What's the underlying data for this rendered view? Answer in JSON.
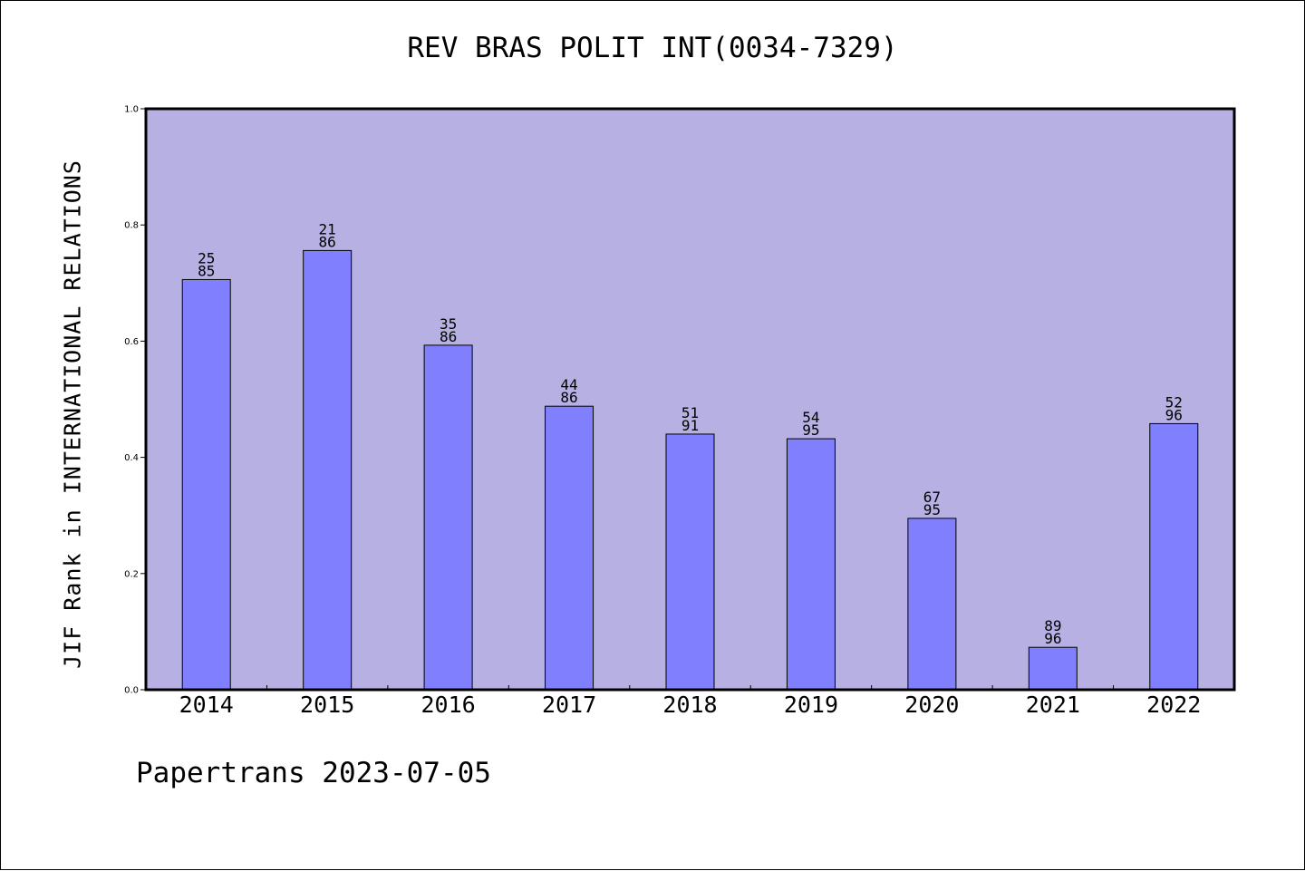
{
  "chart_data": {
    "type": "bar",
    "title": "REV BRAS POLIT INT(0034-7329)",
    "xlabel": "",
    "ylabel": "JIF Rank in INTERNATIONAL RELATIONS",
    "ylim": [
      0.0,
      1.0
    ],
    "yticks": [
      "0.0",
      "0.2",
      "0.4",
      "0.6",
      "0.8",
      "1.0"
    ],
    "categories": [
      "2014",
      "2015",
      "2016",
      "2017",
      "2018",
      "2019",
      "2020",
      "2021",
      "2022"
    ],
    "values": [
      0.706,
      0.756,
      0.593,
      0.488,
      0.44,
      0.432,
      0.295,
      0.073,
      0.458
    ],
    "rank_labels": [
      [
        "25",
        "85"
      ],
      [
        "21",
        "86"
      ],
      [
        "35",
        "86"
      ],
      [
        "44",
        "86"
      ],
      [
        "51",
        "91"
      ],
      [
        "54",
        "95"
      ],
      [
        "67",
        "95"
      ],
      [
        "89",
        "96"
      ],
      [
        "52",
        "96"
      ]
    ],
    "colors": {
      "plot_background": "#b6b0e3",
      "bar_fill": "#8080ff",
      "bar_stroke": "#000000"
    },
    "grid": false,
    "legend": "none"
  },
  "footer": "Papertrans 2023-07-05"
}
